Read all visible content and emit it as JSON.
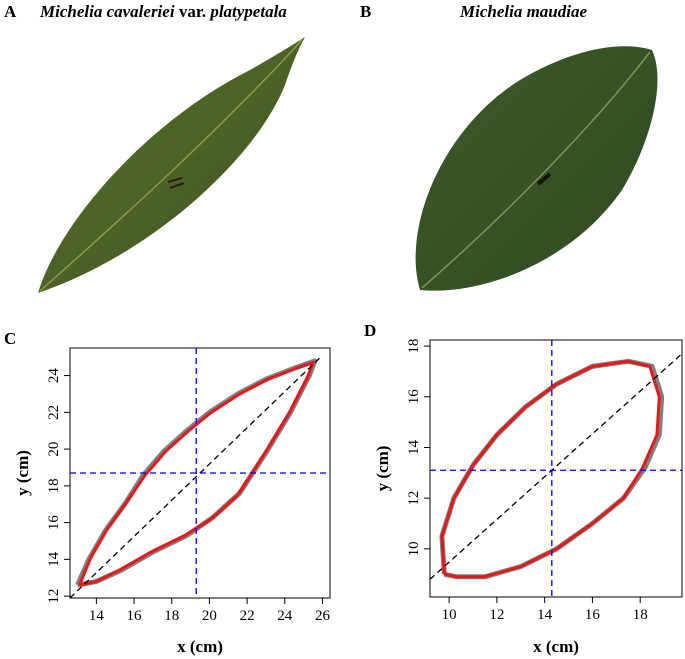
{
  "panels": [
    {
      "label": "A",
      "title": [
        "Michelia cavaleriei",
        "var.",
        "platypetala"
      ]
    },
    {
      "label": "B",
      "title": [
        "Michelia maudiae"
      ]
    }
  ],
  "chart_data": [
    {
      "type": "line",
      "panel_label": "C",
      "x_label": "x (cm)",
      "y_label": "y (cm)",
      "xlim": [
        12.6,
        26.4
      ],
      "ylim": [
        11.9,
        25.5
      ],
      "xticks": [
        14,
        16,
        18,
        20,
        22,
        24,
        26
      ],
      "yticks": [
        12,
        14,
        16,
        18,
        20,
        22,
        24
      ],
      "hline": 18.7,
      "vline": 19.3,
      "guide_color": "#0000ff",
      "diagonal": {
        "x": [
          12.6,
          26.0
        ],
        "y": [
          11.9,
          25.1
        ],
        "color": "#000000"
      },
      "series": [
        {
          "color": "#808080",
          "x": [
            13.0,
            13.6,
            14.5,
            15.5,
            16.5,
            17.6,
            18.8,
            20.0,
            21.5,
            23.0,
            24.5,
            25.6,
            25.3,
            24.3,
            23.0,
            21.6,
            20.2,
            18.8,
            17.0,
            15.3,
            14.0,
            13.0
          ],
          "values": [
            12.6,
            14.0,
            15.6,
            17.0,
            18.6,
            19.9,
            21.0,
            22.0,
            23.0,
            23.8,
            24.4,
            24.8,
            24.0,
            22.0,
            19.8,
            17.6,
            16.3,
            15.3,
            14.4,
            13.4,
            12.8,
            12.6
          ]
        },
        {
          "color": "#e31a1c",
          "x": [
            13.1,
            13.7,
            14.6,
            15.6,
            16.6,
            17.7,
            18.9,
            20.1,
            21.6,
            23.1,
            24.6,
            25.5,
            25.2,
            24.2,
            22.9,
            21.5,
            20.1,
            18.7,
            16.9,
            15.2,
            14.0,
            13.1
          ],
          "values": [
            12.6,
            14.1,
            15.7,
            17.1,
            18.6,
            19.9,
            21.0,
            22.0,
            23.0,
            23.8,
            24.4,
            24.7,
            23.9,
            21.9,
            19.7,
            17.5,
            16.2,
            15.3,
            14.4,
            13.4,
            12.8,
            12.6
          ]
        }
      ]
    },
    {
      "type": "line",
      "panel_label": "D",
      "x_label": "x (cm)",
      "y_label": "y (cm)",
      "xlim": [
        9.2,
        19.75
      ],
      "ylim": [
        8.1,
        18.24
      ],
      "xticks": [
        10,
        12,
        14,
        16,
        18
      ],
      "yticks": [
        10,
        12,
        14,
        16,
        18
      ],
      "hline": 13.1,
      "vline": 14.3,
      "guide_color": "#0000ff",
      "diagonal": {
        "x": [
          9.2,
          19.75
        ],
        "y": [
          8.8,
          17.7
        ],
        "color": "#000000"
      },
      "series": [
        {
          "color": "#808080",
          "x": [
            9.8,
            9.7,
            10.2,
            11.0,
            12.0,
            13.2,
            14.5,
            16.0,
            17.5,
            18.5,
            18.9,
            18.8,
            18.2,
            17.3,
            16.0,
            14.5,
            13.0,
            11.5,
            10.3,
            9.8
          ],
          "values": [
            9.0,
            10.5,
            12.0,
            13.3,
            14.5,
            15.6,
            16.5,
            17.2,
            17.4,
            17.2,
            16.0,
            14.5,
            13.2,
            12.0,
            11.0,
            10.0,
            9.3,
            8.9,
            8.9,
            9.0
          ]
        },
        {
          "color": "#e31a1c",
          "x": [
            9.8,
            9.7,
            10.2,
            11.0,
            12.0,
            13.2,
            14.5,
            16.0,
            17.5,
            18.4,
            18.8,
            18.7,
            18.1,
            17.3,
            16.0,
            14.5,
            13.0,
            11.5,
            10.3,
            9.8
          ],
          "values": [
            9.0,
            10.5,
            12.0,
            13.3,
            14.5,
            15.6,
            16.5,
            17.2,
            17.4,
            17.2,
            16.0,
            14.5,
            13.2,
            12.0,
            11.0,
            10.0,
            9.3,
            8.9,
            8.9,
            9.0
          ]
        }
      ]
    }
  ]
}
